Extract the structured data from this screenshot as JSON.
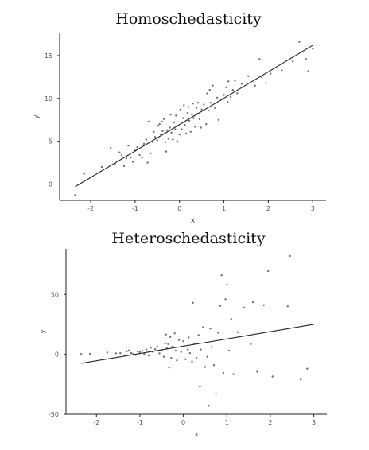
{
  "chart_data": [
    {
      "type": "scatter",
      "title": "Homoschedasticity",
      "xlabel": "x",
      "ylabel": "y",
      "xlim": [
        -2.7,
        3.3
      ],
      "ylim": [
        -1.9,
        17.6
      ],
      "xticks": [
        -2,
        -1,
        0,
        1,
        2,
        3
      ],
      "yticks": [
        0,
        5,
        10,
        15
      ],
      "grid": false,
      "fit_line": {
        "x": [
          -2.35,
          3.0
        ],
        "y": [
          -0.3,
          16.2
        ]
      },
      "points": [
        [
          -2.35,
          -1.3
        ],
        [
          -2.15,
          1.2
        ],
        [
          -1.75,
          2.0
        ],
        [
          -1.55,
          4.2
        ],
        [
          -1.45,
          2.4
        ],
        [
          -1.35,
          3.7
        ],
        [
          -1.3,
          3.4
        ],
        [
          -1.25,
          2.1
        ],
        [
          -1.2,
          3.0
        ],
        [
          -1.15,
          4.5
        ],
        [
          -1.1,
          3.1
        ],
        [
          -1.05,
          2.6
        ],
        [
          -1.0,
          3.9
        ],
        [
          -0.95,
          4.3
        ],
        [
          -0.9,
          3.4
        ],
        [
          -0.85,
          3.1
        ],
        [
          -0.8,
          4.7
        ],
        [
          -0.75,
          5.2
        ],
        [
          -0.72,
          2.5
        ],
        [
          -0.7,
          7.3
        ],
        [
          -0.65,
          3.6
        ],
        [
          -0.6,
          4.9
        ],
        [
          -0.58,
          6.1
        ],
        [
          -0.55,
          5.5
        ],
        [
          -0.5,
          5.1
        ],
        [
          -0.48,
          6.8
        ],
        [
          -0.45,
          7.0
        ],
        [
          -0.42,
          5.8
        ],
        [
          -0.4,
          7.3
        ],
        [
          -0.38,
          6.2
        ],
        [
          -0.35,
          7.6
        ],
        [
          -0.32,
          4.9
        ],
        [
          -0.3,
          3.8
        ],
        [
          -0.28,
          6.3
        ],
        [
          -0.25,
          5.3
        ],
        [
          -0.22,
          6.6
        ],
        [
          -0.2,
          8.1
        ],
        [
          -0.18,
          6.0
        ],
        [
          -0.15,
          5.2
        ],
        [
          -0.12,
          7.2
        ],
        [
          -0.1,
          6.4
        ],
        [
          -0.08,
          8.0
        ],
        [
          -0.05,
          5.0
        ],
        [
          0.0,
          5.8
        ],
        [
          0.02,
          8.7
        ],
        [
          0.05,
          6.4
        ],
        [
          0.08,
          7.7
        ],
        [
          0.1,
          9.2
        ],
        [
          0.12,
          6.9
        ],
        [
          0.15,
          5.9
        ],
        [
          0.18,
          8.3
        ],
        [
          0.2,
          9.0
        ],
        [
          0.22,
          7.4
        ],
        [
          0.25,
          6.1
        ],
        [
          0.28,
          8.1
        ],
        [
          0.3,
          9.4
        ],
        [
          0.32,
          7.7
        ],
        [
          0.35,
          6.7
        ],
        [
          0.38,
          8.9
        ],
        [
          0.4,
          8.2
        ],
        [
          0.42,
          9.5
        ],
        [
          0.45,
          7.6
        ],
        [
          0.48,
          6.6
        ],
        [
          0.5,
          8.7
        ],
        [
          0.55,
          9.3
        ],
        [
          0.6,
          7.0
        ],
        [
          0.62,
          10.6
        ],
        [
          0.65,
          8.6
        ],
        [
          0.68,
          11.0
        ],
        [
          0.7,
          9.5
        ],
        [
          0.75,
          11.5
        ],
        [
          0.8,
          8.9
        ],
        [
          0.85,
          10.1
        ],
        [
          0.88,
          7.5
        ],
        [
          0.95,
          9.9
        ],
        [
          1.0,
          10.4
        ],
        [
          1.05,
          11.3
        ],
        [
          1.08,
          9.6
        ],
        [
          1.1,
          12.0
        ],
        [
          1.15,
          10.2
        ],
        [
          1.2,
          11.0
        ],
        [
          1.25,
          12.1
        ],
        [
          1.3,
          10.6
        ],
        [
          1.4,
          11.7
        ],
        [
          1.55,
          12.6
        ],
        [
          1.7,
          11.5
        ],
        [
          1.8,
          14.6
        ],
        [
          1.85,
          12.5
        ],
        [
          1.95,
          11.8
        ],
        [
          2.05,
          12.9
        ],
        [
          2.3,
          13.3
        ],
        [
          2.55,
          14.3
        ],
        [
          2.7,
          16.6
        ],
        [
          2.85,
          14.6
        ],
        [
          2.9,
          13.2
        ],
        [
          3.0,
          15.8
        ]
      ]
    },
    {
      "type": "scatter",
      "title": "Heteroschedasticity",
      "xlabel": "x",
      "ylabel": "y",
      "xlim": [
        -2.7,
        3.3
      ],
      "ylim": [
        -50,
        88
      ],
      "xticks": [
        -2,
        -1,
        0,
        1,
        2,
        3
      ],
      "yticks": [
        -50,
        0,
        50
      ],
      "grid": false,
      "fit_line": {
        "x": [
          -2.35,
          3.0
        ],
        "y": [
          -7.5,
          25.0
        ]
      },
      "points": [
        [
          -2.35,
          0.2
        ],
        [
          -2.15,
          0.5
        ],
        [
          -1.75,
          1.5
        ],
        [
          -1.55,
          0.8
        ],
        [
          -1.45,
          1.0
        ],
        [
          -1.35,
          -1.2
        ],
        [
          -1.3,
          2.5
        ],
        [
          -1.25,
          3.2
        ],
        [
          -1.2,
          1.0
        ],
        [
          -1.15,
          0.5
        ],
        [
          -1.1,
          -0.5
        ],
        [
          -1.05,
          2.2
        ],
        [
          -1.0,
          1.8
        ],
        [
          -0.95,
          3.0
        ],
        [
          -0.9,
          0.2
        ],
        [
          -0.85,
          4.0
        ],
        [
          -0.8,
          -1.0
        ],
        [
          -0.75,
          5.5
        ],
        [
          -0.7,
          2.0
        ],
        [
          -0.65,
          4.3
        ],
        [
          -0.6,
          6.3
        ],
        [
          -0.55,
          0.8
        ],
        [
          -0.5,
          3.5
        ],
        [
          -0.45,
          -2.0
        ],
        [
          -0.42,
          9.0
        ],
        [
          -0.4,
          16.5
        ],
        [
          -0.38,
          5.0
        ],
        [
          -0.35,
          8.5
        ],
        [
          -0.33,
          -11.0
        ],
        [
          -0.3,
          14.5
        ],
        [
          -0.28,
          -3.0
        ],
        [
          -0.25,
          6.5
        ],
        [
          -0.2,
          17.5
        ],
        [
          -0.18,
          3.0
        ],
        [
          -0.15,
          -5.0
        ],
        [
          -0.1,
          12.0
        ],
        [
          -0.05,
          2.0
        ],
        [
          0.0,
          11.0
        ],
        [
          0.05,
          -4.0
        ],
        [
          0.1,
          4.0
        ],
        [
          0.12,
          14.0
        ],
        [
          0.15,
          1.0
        ],
        [
          0.2,
          -6.0
        ],
        [
          0.22,
          43.0
        ],
        [
          0.25,
          9.0
        ],
        [
          0.3,
          -3.0
        ],
        [
          0.35,
          16.0
        ],
        [
          0.38,
          -27.0
        ],
        [
          0.4,
          4.0
        ],
        [
          0.45,
          22.5
        ],
        [
          0.5,
          -10.5
        ],
        [
          0.55,
          -2.0
        ],
        [
          0.58,
          -43.0
        ],
        [
          0.62,
          21.5
        ],
        [
          0.65,
          6.0
        ],
        [
          0.7,
          -9.0
        ],
        [
          0.75,
          -33.0
        ],
        [
          0.8,
          18.0
        ],
        [
          0.85,
          40.5
        ],
        [
          0.88,
          66.0
        ],
        [
          0.92,
          -15.5
        ],
        [
          0.97,
          46.0
        ],
        [
          1.0,
          58.0
        ],
        [
          1.05,
          3.0
        ],
        [
          1.1,
          29.5
        ],
        [
          1.15,
          -16.5
        ],
        [
          1.25,
          18.5
        ],
        [
          1.4,
          39.0
        ],
        [
          1.55,
          8.5
        ],
        [
          1.6,
          43.5
        ],
        [
          1.7,
          -14.5
        ],
        [
          1.85,
          41.0
        ],
        [
          1.95,
          69.5
        ],
        [
          2.05,
          -18.5
        ],
        [
          2.4,
          40.0
        ],
        [
          2.45,
          82.0
        ],
        [
          2.7,
          -21.0
        ],
        [
          2.85,
          -12.0
        ]
      ]
    }
  ]
}
